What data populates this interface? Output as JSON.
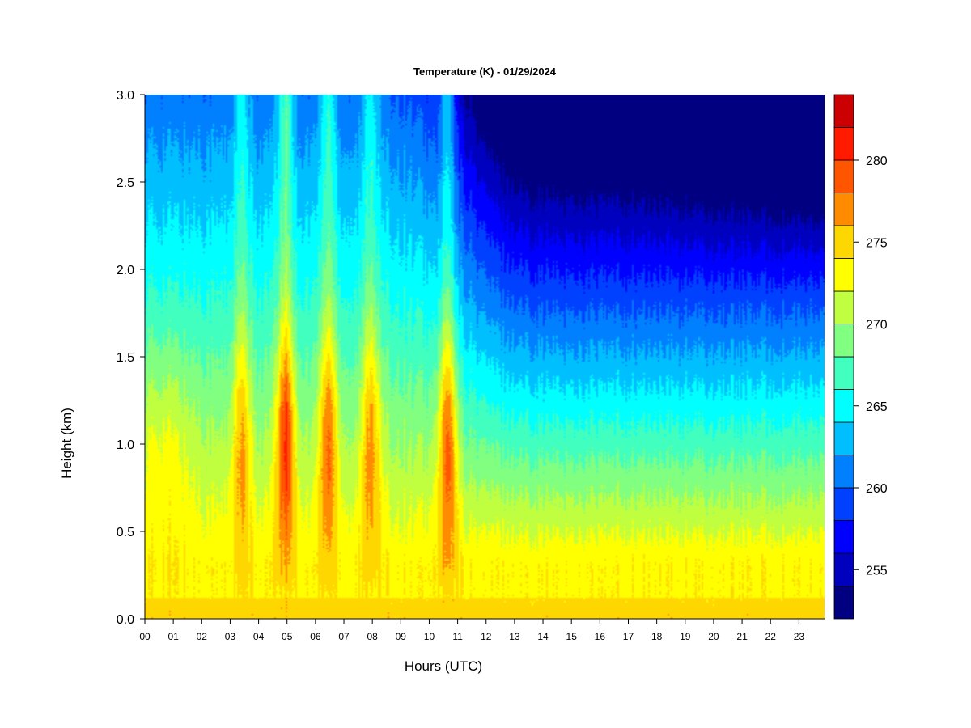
{
  "chart_data": {
    "type": "heatmap",
    "title": "Temperature (K) - 01/29/2024",
    "xlabel": "Hours (UTC)",
    "ylabel": "Height (km)",
    "xlim": [
      0,
      23.9
    ],
    "ylim": [
      0.0,
      3.0
    ],
    "x_tick_labels": [
      "00",
      "01",
      "02",
      "03",
      "04",
      "05",
      "06",
      "07",
      "08",
      "09",
      "10",
      "11",
      "12",
      "13",
      "14",
      "15",
      "16",
      "17",
      "18",
      "19",
      "20",
      "21",
      "22",
      "23"
    ],
    "y_tick_labels": [
      "0.0",
      "0.5",
      "1.0",
      "1.5",
      "2.0",
      "2.5",
      "3.0"
    ],
    "y_tick_values": [
      0.0,
      0.5,
      1.0,
      1.5,
      2.0,
      2.5,
      3.0
    ],
    "colorbar": {
      "range": [
        252,
        284
      ],
      "levels": [
        252,
        254,
        256,
        258,
        260,
        262,
        264,
        266,
        268,
        270,
        272,
        274,
        276,
        278,
        280,
        282,
        284
      ],
      "colors": [
        "#000080",
        "#0000BF",
        "#0000FF",
        "#0040FF",
        "#0080FF",
        "#00BFFF",
        "#00FFFF",
        "#40FFBF",
        "#80FF80",
        "#BFFF40",
        "#FFFF00",
        "#FFD700",
        "#FF8C00",
        "#FF5500",
        "#FF1A00",
        "#CC0000",
        "#800000"
      ],
      "tick_values": [
        255,
        260,
        265,
        270,
        275,
        280
      ],
      "tick_labels": [
        "255",
        "260",
        "265",
        "270",
        "275",
        "280"
      ]
    },
    "warm_plumes_utc": [
      {
        "center_hour": 3.4,
        "peak_K": 279
      },
      {
        "center_hour": 4.95,
        "peak_K": 283
      },
      {
        "center_hour": 6.45,
        "peak_K": 281
      },
      {
        "center_hour": 7.95,
        "peak_K": 280
      },
      {
        "center_hour": 10.65,
        "peak_K": 282
      }
    ],
    "notes": "Temperature decreases with height; warm layer (~274-276 K) near surface; coldest (~253 K) aloft after 17 UTC."
  }
}
